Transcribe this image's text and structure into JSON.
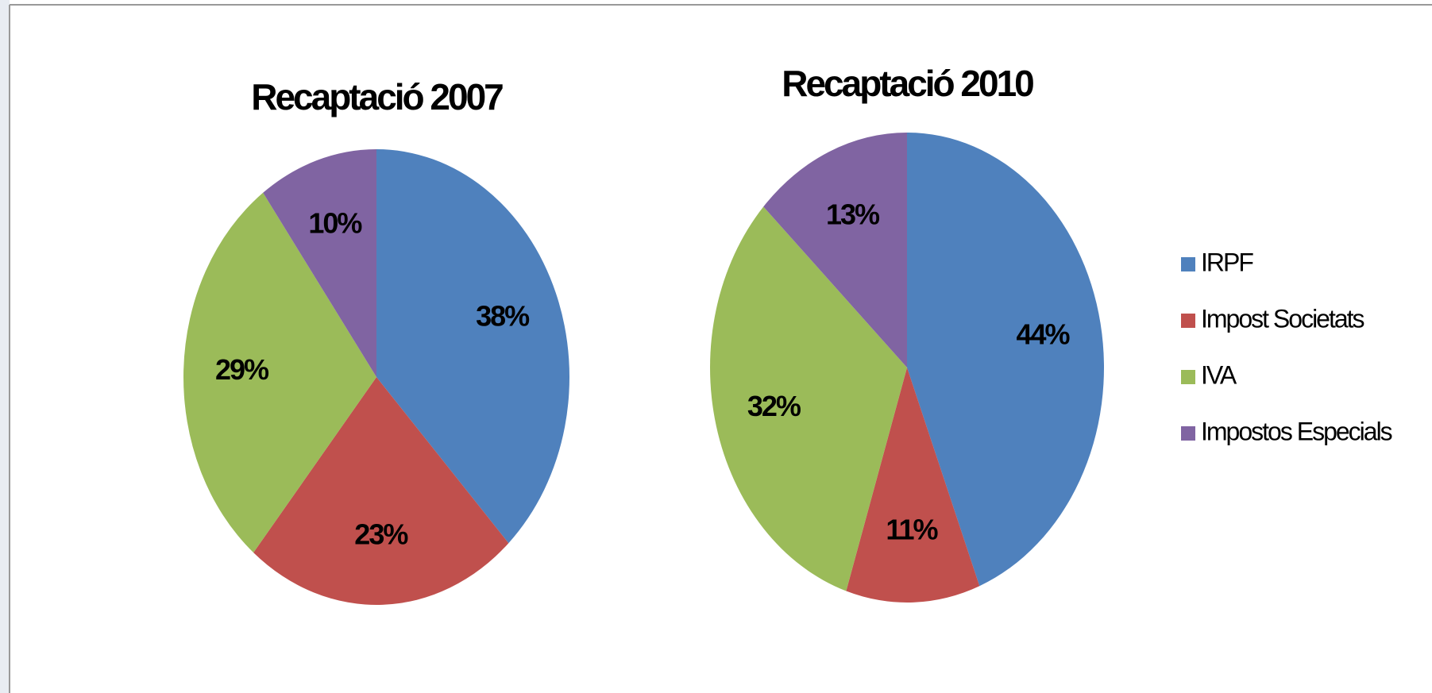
{
  "categories": [
    "IRPF",
    "Impost Societats",
    "IVA",
    "Impostos Especials"
  ],
  "colors": [
    "#4f81bd",
    "#c0504d",
    "#9bbb59",
    "#8064a2"
  ],
  "chart_data": [
    {
      "type": "pie",
      "title": "Recaptació 2007",
      "values": [
        38,
        23,
        29,
        10
      ],
      "value_labels": [
        "38%",
        "23%",
        "29%",
        "10%"
      ]
    },
    {
      "type": "pie",
      "title": "Recaptació 2010",
      "values": [
        44,
        11,
        32,
        13
      ],
      "value_labels": [
        "44%",
        "11%",
        "32%",
        "13%"
      ]
    }
  ]
}
